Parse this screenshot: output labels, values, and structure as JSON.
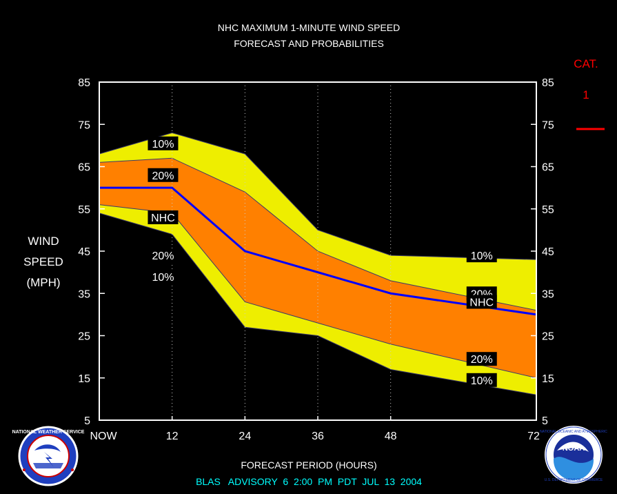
{
  "title_line1": "NHC MAXIMUM 1-MINUTE WIND SPEED",
  "title_line2": "FORECAST AND PROBABILITIES",
  "ylabel": [
    "WIND",
    "SPEED",
    "(MPH)"
  ],
  "xlabel": "FORECAST PERIOD (HOURS)",
  "advisory": "BLAS   ADVISORY  6  2:00  PM  PDT  JUL  13  2004",
  "category": {
    "label": "CAT.",
    "value": "1",
    "color": "#ff0000"
  },
  "logos": {
    "left": "nws-logo",
    "right": "noaa-logo"
  },
  "colors": {
    "outer_band": "#eeee00",
    "inner_band": "#ff8000",
    "nhc_line": "#0000ff",
    "axes": "#ffffff",
    "cat_line": "#ff0000"
  },
  "chart_data": {
    "type": "area",
    "x": [
      0,
      12,
      24,
      36,
      48,
      72
    ],
    "xtick_labels": [
      "NOW",
      "12",
      "24",
      "36",
      "48",
      "72"
    ],
    "xlim": [
      0,
      72
    ],
    "ylim": [
      5,
      85
    ],
    "yticks": [
      5,
      15,
      25,
      35,
      45,
      55,
      65,
      75,
      85
    ],
    "grid": "dotted vertical lines at forecast hours",
    "series": [
      {
        "name": "10%",
        "upper": [
          68,
          73,
          68,
          50,
          44,
          43
        ],
        "lower": [
          54,
          49,
          27,
          25,
          17,
          11
        ]
      },
      {
        "name": "20%",
        "upper": [
          66,
          67,
          59,
          45,
          38,
          31
        ],
        "lower": [
          56,
          54,
          33,
          28,
          23,
          15
        ]
      },
      {
        "name": "NHC",
        "values": [
          60,
          60,
          45,
          40,
          35,
          30
        ]
      }
    ],
    "annotations": [
      {
        "text": "10%",
        "x": 10.5,
        "y": 70.5
      },
      {
        "text": "20%",
        "x": 10.5,
        "y": 63
      },
      {
        "text": "NHC",
        "x": 10.5,
        "y": 53
      },
      {
        "text": "20%",
        "x": 10.5,
        "y": 44
      },
      {
        "text": "10%",
        "x": 10.5,
        "y": 39
      },
      {
        "text": "10%",
        "x": 63,
        "y": 44
      },
      {
        "text": "20%",
        "x": 63,
        "y": 35
      },
      {
        "text": "NHC",
        "x": 63,
        "y": 33
      },
      {
        "text": "20%",
        "x": 63,
        "y": 19.5
      },
      {
        "text": "10%",
        "x": 63,
        "y": 14.5
      }
    ]
  }
}
